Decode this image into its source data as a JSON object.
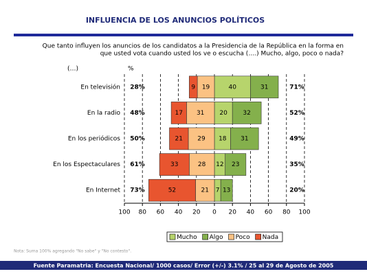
{
  "chart_data": {
    "type": "diverging_bar",
    "title": "INFLUENCIA DE LOS ANUNCIOS POLÍTICOS",
    "question_lines": [
      "Que tanto influyen los anuncios de los candidatos a la Presidencia de la República en la forma en",
      "que usted vota cuando usted los ve o escucha (….)  Mucho, algo, poco o nada?"
    ],
    "category_header": "(…)",
    "total_header": "%",
    "categories": [
      "En televisión",
      "En la radio",
      "En los periódicos",
      "En los Espectaculares",
      "En Internet"
    ],
    "series": [
      {
        "name": "Mucho",
        "color": "#b7d46c",
        "side": "right",
        "values": [
          40,
          20,
          18,
          12,
          7
        ]
      },
      {
        "name": "Algo",
        "color": "#84b04c",
        "side": "right",
        "values": [
          31,
          32,
          31,
          23,
          13
        ]
      },
      {
        "name": "Poco",
        "color": "#fbc283",
        "side": "left",
        "values": [
          19,
          31,
          29,
          28,
          21
        ]
      },
      {
        "name": "Nada",
        "color": "#e8552f",
        "side": "left",
        "values": [
          9,
          17,
          21,
          33,
          52
        ]
      }
    ],
    "left_totals": {
      "values": [
        28,
        48,
        50,
        61,
        73
      ],
      "value_labels": [
        "28%",
        "48%",
        "50%",
        "61%",
        "73%"
      ]
    },
    "right_totals": {
      "values": [
        71,
        52,
        49,
        35,
        20
      ],
      "value_labels": [
        "71%",
        "52%",
        "49%",
        "35%",
        "20%"
      ]
    },
    "xlim": [
      -100,
      100
    ],
    "xticks": [
      {
        "value": -100,
        "label": "100"
      },
      {
        "value": -80,
        "label": "80"
      },
      {
        "value": -60,
        "label": "60"
      },
      {
        "value": -40,
        "label": "40"
      },
      {
        "value": -20,
        "label": "20"
      },
      0,
      20,
      40,
      60,
      80,
      100
    ],
    "grid": true,
    "note": "Nota: Suma 100% agregando \"No sabe\" y \"No contesto\".",
    "source": "Fuente Paramatria: Encuesta Nacional/ 1000 casos/ Error (+/-) 3.1% / 25 al 29 de Agosto de 2005"
  }
}
